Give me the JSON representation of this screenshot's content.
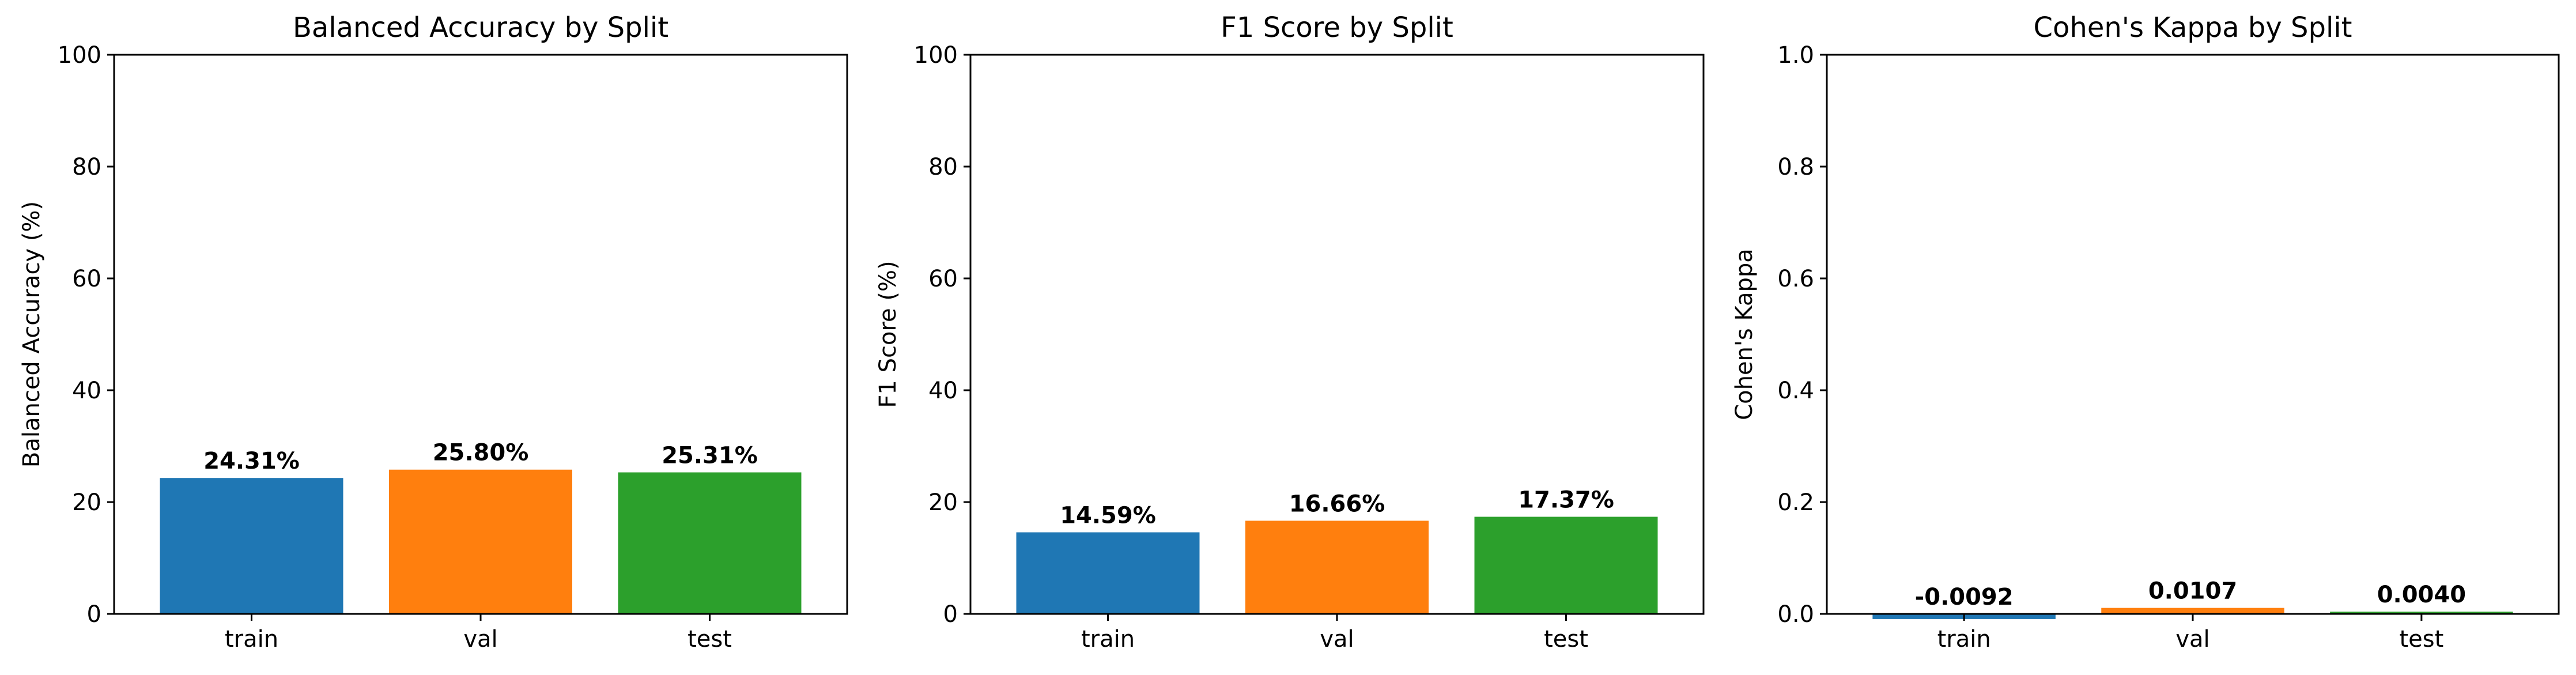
{
  "colors": {
    "train": "#1f77b4",
    "val": "#ff7f0e",
    "test": "#2ca02c"
  },
  "chart_data": [
    {
      "type": "bar",
      "title": "Balanced Accuracy by Split",
      "xlabel": "",
      "ylabel": "Balanced Accuracy (%)",
      "ylim": [
        0,
        100
      ],
      "yticks": [
        "0",
        "20",
        "40",
        "60",
        "80",
        "100"
      ],
      "yticks_values": [
        0,
        20,
        40,
        60,
        80,
        100
      ],
      "categories": [
        "train",
        "val",
        "test"
      ],
      "values": [
        24.31,
        25.8,
        25.31
      ],
      "data_labels": [
        "24.31%",
        "25.80%",
        "25.31%"
      ],
      "grid": false,
      "legend": "none"
    },
    {
      "type": "bar",
      "title": "F1 Score by Split",
      "xlabel": "",
      "ylabel": "F1 Score (%)",
      "ylim": [
        0,
        100
      ],
      "yticks": [
        "0",
        "20",
        "40",
        "60",
        "80",
        "100"
      ],
      "yticks_values": [
        0,
        20,
        40,
        60,
        80,
        100
      ],
      "categories": [
        "train",
        "val",
        "test"
      ],
      "values": [
        14.59,
        16.66,
        17.37
      ],
      "data_labels": [
        "14.59%",
        "16.66%",
        "17.37%"
      ],
      "grid": false,
      "legend": "none"
    },
    {
      "type": "bar",
      "title": "Cohen's Kappa by Split",
      "xlabel": "",
      "ylabel": "Cohen's Kappa",
      "ylim": [
        0,
        1
      ],
      "yticks": [
        "0.0",
        "0.2",
        "0.4",
        "0.6",
        "0.8",
        "1.0"
      ],
      "yticks_values": [
        0,
        0.2,
        0.4,
        0.6,
        0.8,
        1.0
      ],
      "categories": [
        "train",
        "val",
        "test"
      ],
      "values": [
        -0.0092,
        0.0107,
        0.004
      ],
      "data_labels": [
        "-0.0092",
        "0.0107",
        "0.0040"
      ],
      "grid": false,
      "legend": "none"
    }
  ]
}
